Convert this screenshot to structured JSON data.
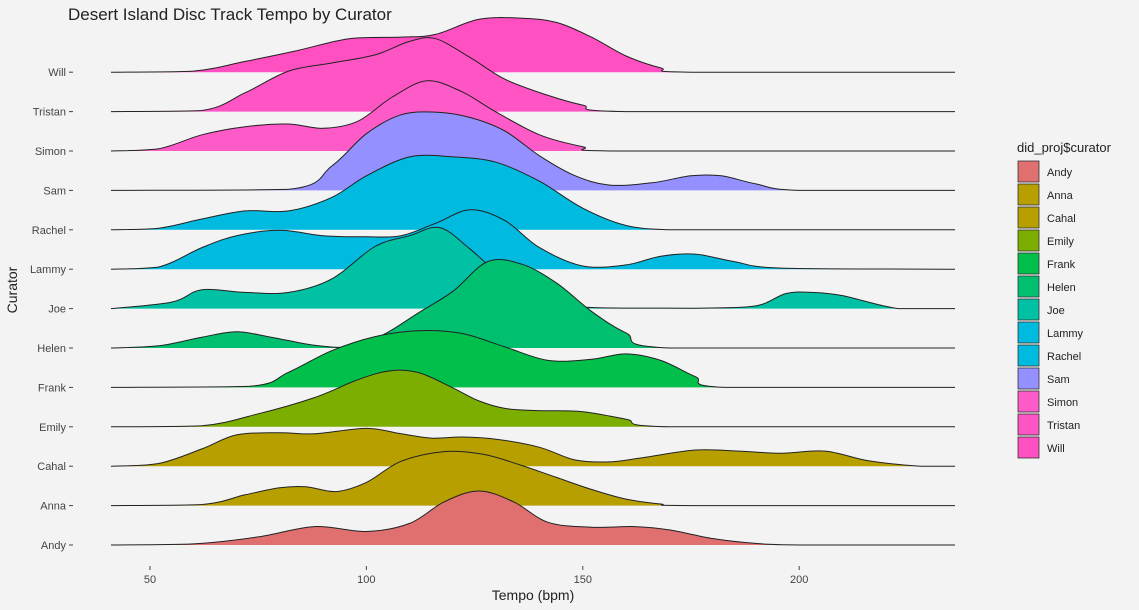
{
  "chart_data": {
    "type": "ridgeline",
    "title": "Desert Island Disc Track Tempo by Curator",
    "xlabel": "Tempo (bpm)",
    "ylabel": "Curator",
    "xlim": [
      41,
      236
    ],
    "xticks": [
      50,
      100,
      150,
      200
    ],
    "grid": false,
    "legend": {
      "title": "did_proj$curator",
      "position": "right"
    },
    "series": [
      {
        "name": "Andy",
        "color": "#E07070",
        "x": [
          41,
          60,
          75,
          88,
          100,
          110,
          118,
          126,
          134,
          142,
          152,
          162,
          170,
          180,
          190,
          200,
          236
        ],
        "y": [
          0,
          0.02,
          0.15,
          0.34,
          0.25,
          0.4,
          0.8,
          1.0,
          0.8,
          0.42,
          0.33,
          0.34,
          0.28,
          0.12,
          0.03,
          0,
          0
        ]
      },
      {
        "name": "Anna",
        "color": "#B79F00",
        "x": [
          41,
          62,
          72,
          80,
          86,
          93,
          100,
          108,
          118,
          127,
          136,
          144,
          152,
          160,
          168,
          175,
          236
        ],
        "y": [
          0,
          0.02,
          0.2,
          0.33,
          0.35,
          0.26,
          0.43,
          0.82,
          1.0,
          0.95,
          0.74,
          0.52,
          0.3,
          0.12,
          0.03,
          0,
          0
        ]
      },
      {
        "name": "Cahal",
        "color": "#B79F00",
        "x": [
          41,
          52,
          62,
          70,
          80,
          88,
          100,
          108,
          115,
          122,
          130,
          140,
          148,
          156,
          164,
          176,
          186,
          196,
          206,
          216,
          228,
          236
        ],
        "y": [
          0,
          0.05,
          0.32,
          0.58,
          0.62,
          0.6,
          0.7,
          0.6,
          0.52,
          0.54,
          0.5,
          0.35,
          0.12,
          0.08,
          0.16,
          0.3,
          0.28,
          0.24,
          0.28,
          0.1,
          0,
          0
        ]
      },
      {
        "name": "Emily",
        "color": "#7CAE00",
        "x": [
          41,
          62,
          75,
          88,
          97,
          103,
          108,
          113,
          120,
          126,
          132,
          140,
          150,
          160,
          170,
          236
        ],
        "y": [
          0,
          0.02,
          0.24,
          0.54,
          0.84,
          1.0,
          1.05,
          0.98,
          0.72,
          0.48,
          0.34,
          0.3,
          0.28,
          0.14,
          0,
          0
        ]
      },
      {
        "name": "Frank",
        "color": "#00C04B",
        "x": [
          41,
          73,
          82,
          92,
          102,
          112,
          122,
          132,
          142,
          152,
          160,
          168,
          176,
          183,
          236
        ],
        "y": [
          0,
          0.02,
          0.28,
          0.68,
          0.94,
          1.05,
          1.0,
          0.75,
          0.5,
          0.52,
          0.62,
          0.5,
          0.2,
          0,
          0
        ]
      },
      {
        "name": "Helen",
        "color": "#00C070",
        "x": [
          41,
          52,
          62,
          70,
          78,
          88,
          96,
          104,
          112,
          120,
          128,
          136,
          144,
          152,
          160,
          170,
          236
        ],
        "y": [
          0,
          0.04,
          0.2,
          0.3,
          0.2,
          0.05,
          0.02,
          0.25,
          0.65,
          1.05,
          1.6,
          1.55,
          1.2,
          0.68,
          0.28,
          0,
          0
        ]
      },
      {
        "name": "Joe",
        "color": "#00C1A3",
        "x": [
          41,
          55,
          62,
          72,
          82,
          92,
          102,
          110,
          117,
          124,
          132,
          142,
          152,
          165,
          178,
          190,
          197,
          203,
          210,
          223,
          236
        ],
        "y": [
          0,
          0.12,
          0.35,
          0.3,
          0.3,
          0.55,
          1.15,
          1.35,
          1.5,
          1.1,
          0.55,
          0.1,
          0.02,
          0.01,
          0.01,
          0.05,
          0.28,
          0.3,
          0.24,
          0,
          0
        ]
      },
      {
        "name": "Lammy",
        "color": "#00BAE0",
        "x": [
          41,
          52,
          62,
          70,
          80,
          90,
          100,
          108,
          116,
          124,
          132,
          140,
          150,
          160,
          168,
          176,
          185,
          196,
          236
        ],
        "y": [
          0,
          0.04,
          0.4,
          0.62,
          0.72,
          0.62,
          0.6,
          0.62,
          0.85,
          1.1,
          0.9,
          0.4,
          0.06,
          0.08,
          0.24,
          0.28,
          0.14,
          0.02,
          0
        ]
      },
      {
        "name": "Rachel",
        "color": "#00BAE0",
        "x": [
          41,
          52,
          62,
          72,
          82,
          92,
          100,
          110,
          120,
          130,
          140,
          150,
          160,
          170,
          180,
          236
        ],
        "y": [
          0,
          0.03,
          0.2,
          0.35,
          0.35,
          0.6,
          1.0,
          1.35,
          1.35,
          1.25,
          0.9,
          0.4,
          0.08,
          0,
          0,
          0
        ]
      },
      {
        "name": "Sam",
        "color": "#9590FF",
        "x": [
          41,
          82,
          92,
          100,
          108,
          116,
          124,
          132,
          140,
          148,
          156,
          166,
          175,
          182,
          190,
          200,
          236
        ],
        "y": [
          0,
          0.02,
          0.45,
          1.05,
          1.4,
          1.45,
          1.35,
          1.1,
          0.64,
          0.28,
          0.1,
          0.14,
          0.27,
          0.27,
          0.12,
          0,
          0
        ]
      },
      {
        "name": "Simon",
        "color": "#FF5BC8",
        "x": [
          41,
          52,
          62,
          72,
          82,
          90,
          98,
          106,
          114,
          122,
          130,
          140,
          150,
          158,
          236
        ],
        "y": [
          0,
          0.04,
          0.3,
          0.45,
          0.5,
          0.42,
          0.55,
          1.0,
          1.3,
          1.1,
          0.72,
          0.3,
          0.08,
          0,
          0
        ]
      },
      {
        "name": "Tristan",
        "color": "#FF55C4",
        "x": [
          41,
          62,
          72,
          82,
          92,
          102,
          110,
          116,
          124,
          132,
          142,
          150,
          160,
          236
        ],
        "y": [
          0,
          0.02,
          0.35,
          0.75,
          0.9,
          1.05,
          1.3,
          1.35,
          1.0,
          0.6,
          0.3,
          0.12,
          0,
          0
        ]
      },
      {
        "name": "Will",
        "color": "#FF4FC0",
        "x": [
          41,
          60,
          72,
          84,
          96,
          108,
          116,
          126,
          136,
          144,
          152,
          160,
          168,
          175,
          236
        ],
        "y": [
          0,
          0.02,
          0.2,
          0.4,
          0.62,
          0.65,
          0.7,
          0.98,
          1.0,
          0.92,
          0.65,
          0.3,
          0.08,
          0,
          0
        ]
      }
    ]
  }
}
